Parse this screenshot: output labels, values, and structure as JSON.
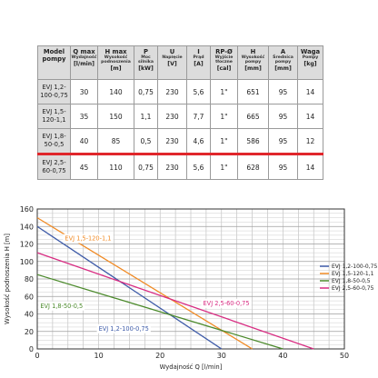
{
  "table": {
    "headers": [
      {
        "main": "Model pompy",
        "sub": "",
        "unit": ""
      },
      {
        "main": "Q max",
        "sub": "Wydajność",
        "unit": "[l/min]"
      },
      {
        "main": "H max",
        "sub": "Wysokość podnoszenia",
        "unit": "[m]"
      },
      {
        "main": "P",
        "sub": "Moc silnika",
        "unit": "[kW]"
      },
      {
        "main": "U",
        "sub": "Napięcie",
        "unit": "[V]"
      },
      {
        "main": "I",
        "sub": "Prąd",
        "unit": "[A]"
      },
      {
        "main": "RP-Ø",
        "sub": "Wyjście tłoczne",
        "unit": "[cal]"
      },
      {
        "main": "H",
        "sub": "Wysokość pompy",
        "unit": "[mm]"
      },
      {
        "main": "A",
        "sub": "Średnica pompy",
        "unit": "[mm]"
      },
      {
        "main": "Waga",
        "sub": "Pompy",
        "unit": "[kg]"
      }
    ],
    "rows": [
      {
        "model": "EVJ 1,2-100-0,75",
        "cells": [
          "30",
          "140",
          "0,75",
          "230",
          "5,6",
          "1\"",
          "651",
          "95",
          "14"
        ]
      },
      {
        "model": "EVJ 1,5-120-1,1",
        "cells": [
          "35",
          "150",
          "1,1",
          "230",
          "7,7",
          "1\"",
          "665",
          "95",
          "14"
        ]
      },
      {
        "model": "EVJ 1,8-50-0,5",
        "cells": [
          "40",
          "85",
          "0,5",
          "230",
          "4,6",
          "1\"",
          "586",
          "95",
          "12"
        ]
      },
      {
        "model": "EVJ 2,5-60-0,75",
        "cells": [
          "45",
          "110",
          "0,75",
          "230",
          "5,6",
          "1\"",
          "628",
          "95",
          "14"
        ]
      }
    ]
  },
  "chart_data": {
    "type": "line",
    "xlabel": "Wydajność Q [l/min]",
    "ylabel": "Wysokość podnoszenia H [m]",
    "xlim": [
      0,
      50
    ],
    "ylim": [
      0,
      160
    ],
    "x_ticks": [
      0,
      10,
      20,
      30,
      40,
      50
    ],
    "y_ticks": [
      0,
      20,
      40,
      60,
      80,
      100,
      120,
      140,
      160
    ],
    "grid": true,
    "legend_position": "right",
    "series": [
      {
        "name": "EVJ 1,2-100-0,75",
        "color": "#3e5ba8",
        "x": [
          0,
          30
        ],
        "y": [
          140,
          0
        ]
      },
      {
        "name": "EVJ 1,5-120-1,1",
        "color": "#f08a24",
        "x": [
          0,
          35
        ],
        "y": [
          150,
          0
        ]
      },
      {
        "name": "EVJ 1,8-50-0,5",
        "color": "#4c8a2c",
        "x": [
          0,
          40
        ],
        "y": [
          85,
          0
        ]
      },
      {
        "name": "EVJ 2,5-60-0,75",
        "color": "#d82c82",
        "x": [
          0,
          45
        ],
        "y": [
          110,
          0
        ]
      }
    ],
    "annotations": [
      {
        "text": "EVJ 1,5-120-1,1",
        "series": 1,
        "x": 4.5,
        "y": 124
      },
      {
        "text": "EVJ 1,8-50-0,5",
        "series": 2,
        "x": 0.5,
        "y": 47
      },
      {
        "text": "EVJ 2,5-60-0,75",
        "series": 3,
        "x": 27,
        "y": 50
      },
      {
        "text": "EVJ 1,2-100-0,75",
        "series": 0,
        "x": 10,
        "y": 21
      }
    ]
  },
  "colors": {
    "highlight": "#e0262b",
    "header_bg": "#dcdcdc"
  }
}
